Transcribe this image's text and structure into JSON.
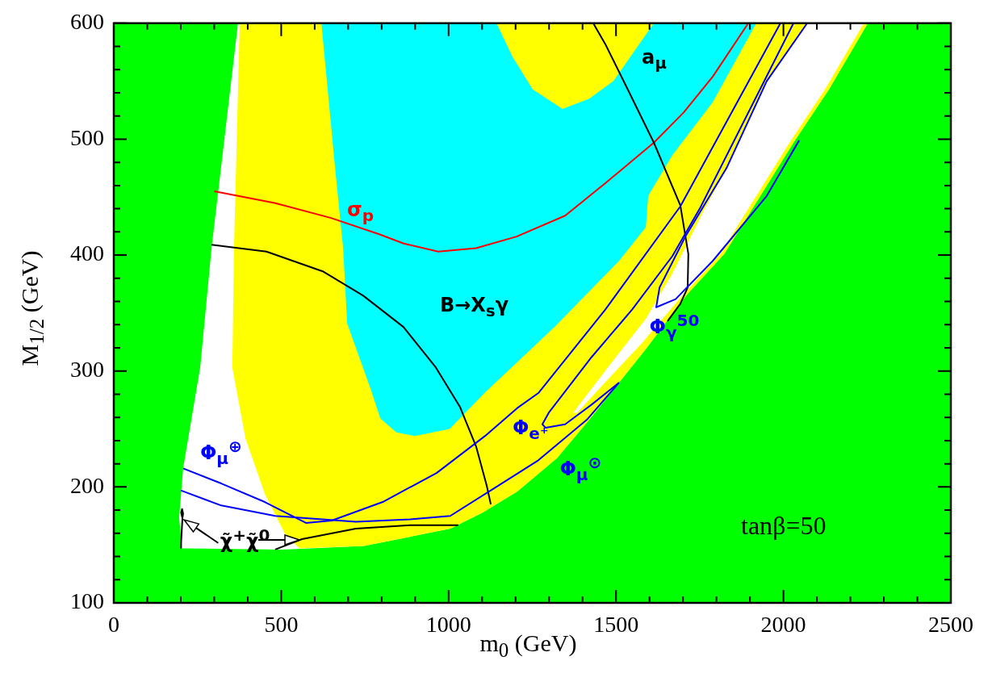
{
  "chart_data": {
    "type": "line",
    "xlabel": "m$_{0}$ (GeV)",
    "ylabel": "M$_{1/2}$ (GeV)",
    "xlim": [
      0,
      2500
    ],
    "ylim": [
      100,
      600
    ],
    "xticks": [
      0,
      {
        "value": 100,
        "label": null
      },
      {
        "value": 200,
        "label": null
      },
      {
        "value": 300,
        "label": null
      },
      {
        "value": 400,
        "label": null
      },
      500,
      {
        "value": 600,
        "label": null
      },
      {
        "value": 700,
        "label": null
      },
      {
        "value": 800,
        "label": null
      },
      {
        "value": 900,
        "label": null
      },
      1000,
      {
        "value": 1100,
        "label": null
      },
      {
        "value": 1200,
        "label": null
      },
      {
        "value": 1300,
        "label": null
      },
      {
        "value": 1400,
        "label": null
      },
      1500,
      {
        "value": 1600,
        "label": null
      },
      {
        "value": 1700,
        "label": null
      },
      {
        "value": 1800,
        "label": null
      },
      {
        "value": 1900,
        "label": null
      },
      2000,
      {
        "value": 2100,
        "label": null
      },
      {
        "value": 2200,
        "label": null
      },
      {
        "value": 2300,
        "label": null
      },
      {
        "value": 2400,
        "label": null
      },
      2500
    ],
    "yticks": [
      100,
      {
        "value": 120,
        "label": null
      },
      {
        "value": 140,
        "label": null
      },
      {
        "value": 160,
        "label": null
      },
      {
        "value": 180,
        "label": null
      },
      200,
      {
        "value": 220,
        "label": null
      },
      {
        "value": 240,
        "label": null
      },
      {
        "value": 260,
        "label": null
      },
      {
        "value": 280,
        "label": null
      },
      300,
      {
        "value": 320,
        "label": null
      },
      {
        "value": 340,
        "label": null
      },
      {
        "value": 360,
        "label": null
      },
      {
        "value": 380,
        "label": null
      },
      400,
      {
        "value": 420,
        "label": null
      },
      {
        "value": 440,
        "label": null
      },
      {
        "value": 460,
        "label": null
      },
      {
        "value": 480,
        "label": null
      },
      500,
      {
        "value": 520,
        "label": null
      },
      {
        "value": 540,
        "label": null
      },
      {
        "value": 560,
        "label": null
      },
      {
        "value": 580,
        "label": null
      },
      600
    ],
    "annotations": [
      "tanβ=50"
    ],
    "series": [
      {
        "type": "area",
        "color": "#00ff00",
        "x": [
          0,
          371,
          292,
          258,
          207,
          195,
          205,
          504,
          747,
          1005,
          1102,
          1205,
          1324,
          1420,
          1509,
          1589,
          1709,
          1823,
          2030,
          2136,
          2252,
          2500,
          2500,
          0
        ],
        "values": [
          600,
          600,
          406,
          303,
          216,
          173,
          147,
          146,
          149,
          164,
          178,
          196,
          225,
          258,
          290,
          319,
          365,
          401,
          497,
          543,
          600,
          600,
          100,
          100
        ]
      },
      {
        "type": "area",
        "color": "#ffff00",
        "x": [
          376,
          2252,
          2136,
          2030,
          1823,
          1709,
          1589,
          1509,
          1420,
          1324,
          1205,
          1102,
          1005,
          747,
          555,
          514,
          451,
          393,
          354,
          359
        ],
        "values": [
          600,
          600,
          543,
          497,
          401,
          365,
          319,
          290,
          258,
          225,
          196,
          178,
          164,
          149,
          147,
          158,
          194,
          242,
          303,
          406
        ]
      },
      {
        "type": "area",
        "color": "#00ffff",
        "x": [
          620,
          1143,
          1191,
          1251,
          1340,
          1420,
          1492,
          1613,
          1919,
          1789,
          1668,
          1596,
          1589,
          1509,
          1316,
          1107,
          1003,
          899,
          844,
          796,
          769,
          697,
          685,
          661
        ],
        "values": [
          600,
          600,
          571,
          543,
          526,
          535,
          550,
          600,
          600,
          532,
          486,
          451,
          424,
          395,
          338,
          281,
          250,
          244,
          247,
          259,
          283,
          341,
          406,
          475
        ]
      },
      {
        "type": "area",
        "color": "#ffffff",
        "x": [
          1372,
          1475,
          1589,
          1668,
          1765,
          1830,
          1950,
          2071,
          2240,
          2124,
          2018,
          1811,
          1698,
          1577,
          1444,
          1384
        ],
        "values": [
          264,
          303,
          345,
          384,
          440,
          475,
          550,
          600,
          600,
          543,
          497,
          401,
          365,
          324,
          283,
          264
        ]
      },
      {
        "name": "σ$_{p}$",
        "color": "#ff0000",
        "x": [
          300,
          480,
          649,
          793,
          866,
          969,
          1082,
          1203,
          1348,
          1468,
          1613,
          1702,
          1789,
          1895
        ],
        "values": [
          455,
          445,
          432,
          418,
          410,
          403,
          406,
          416,
          434,
          462,
          497,
          523,
          554,
          600
        ]
      },
      {
        "name": "B→X$_{s}$γ",
        "color": "#000000",
        "x": [
          292,
          456,
          624,
          745,
          865,
          962,
          1034,
          1082,
          1114,
          1126
        ],
        "values": [
          409,
          403,
          386,
          365,
          338,
          303,
          269,
          235,
          201,
          185
        ]
      },
      {
        "name": "a$_{μ}$",
        "color": "#000000",
        "x": [
          1432,
          1468,
          1540,
          1613,
          1692,
          1716,
          1714,
          1692,
          1654
        ],
        "values": [
          600,
          582,
          540,
          497,
          443,
          401,
          372,
          358,
          343
        ]
      },
      {
        "name": "χ̃$^{+}$χ̃$^{0}$",
        "color": "#000000",
        "x": [
          200,
          205,
          201,
          204,
          207,
          205,
          300,
          482,
          562,
          723,
          885,
          1029
        ],
        "values": [
          147,
          173,
          178,
          181,
          177,
          173,
          null,
          146,
          155,
          164,
          167,
          167
        ]
      },
      {
        "name": "Φ$_{μ}$$^{⊙}$",
        "color": "#0000ff",
        "x": [
          200,
          321,
          482,
          723,
          885,
          1005,
          1148,
          1268,
          1413,
          1509
        ],
        "values": [
          197,
          184,
          175,
          170,
          172,
          175,
          201,
          223,
          258,
          290
        ]
      },
      {
        "name": "Φ$_{μ}$$^{⊕}$",
        "color": "#0000ff",
        "x": [
          207,
          321,
          451,
          574,
          651,
          803,
          964,
          1109,
          1205,
          1268,
          1468,
          1692,
          1991
        ],
        "values": [
          216,
          203,
          187,
          169,
          171,
          187,
          212,
          244,
          268,
          281,
          353,
          442,
          600
        ]
      },
      {
        "name": "Φ$_{e⁺}$",
        "color": "#0000ff",
        "x": [
          1509,
          1427,
          1348,
          1290,
          1280,
          1299,
          1427,
          1548,
          1668,
          1750,
          2030
        ],
        "values": [
          290,
          271,
          254,
          251,
          254,
          264,
          312,
          353,
          399,
          440,
          600
        ]
      },
      {
        "name": "Φ$_{γ}$$^{50}$",
        "color": "#0000ff",
        "x": [
          2047,
          1950,
          1789,
          1678,
          1620,
          1630,
          1709,
          1830,
          1950,
          2071
        ],
        "values": [
          499,
          451,
          395,
          362,
          355,
          372,
          417,
          475,
          550,
          600
        ]
      }
    ]
  }
}
